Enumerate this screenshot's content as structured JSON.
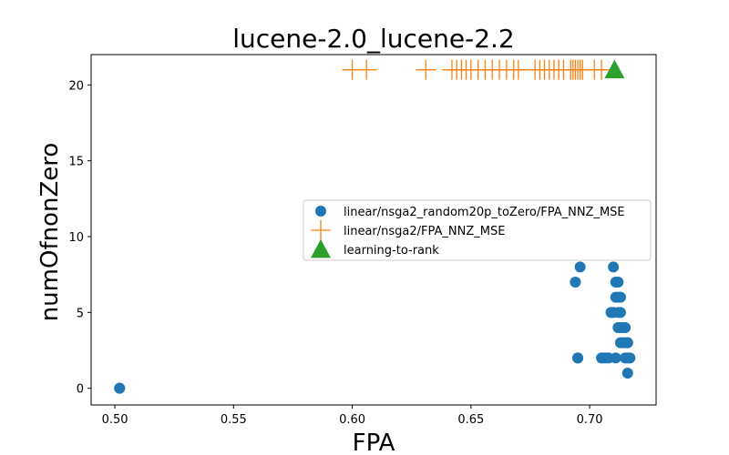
{
  "chart_data": {
    "type": "scatter",
    "title": "lucene-2.0_lucene-2.2",
    "xlabel": "FPA",
    "ylabel": "numOfnonZero",
    "xlim": [
      0.49,
      0.728
    ],
    "ylim": [
      -1.1,
      22.0
    ],
    "xticks": [
      0.5,
      0.55,
      0.6,
      0.65,
      0.7
    ],
    "xtick_labels": [
      "0.50",
      "0.55",
      "0.60",
      "0.65",
      "0.70"
    ],
    "yticks": [
      0,
      5,
      10,
      15,
      20
    ],
    "ytick_labels": [
      "0",
      "5",
      "10",
      "15",
      "20"
    ],
    "grid": false,
    "legend_position": "center-right",
    "series": [
      {
        "name": "linear/nsga2_random20p_toZero/FPA_NNZ_MSE",
        "marker": "circle",
        "color": "#1f77b4",
        "points": [
          [
            0.502,
            0
          ],
          [
            0.502,
            0
          ],
          [
            0.694,
            7
          ],
          [
            0.696,
            8
          ],
          [
            0.695,
            2
          ],
          [
            0.695,
            2
          ],
          [
            0.705,
            2
          ],
          [
            0.706,
            2
          ],
          [
            0.707,
            2
          ],
          [
            0.708,
            2
          ],
          [
            0.709,
            5
          ],
          [
            0.71,
            5
          ],
          [
            0.71,
            8
          ],
          [
            0.711,
            7
          ],
          [
            0.712,
            7
          ],
          [
            0.711,
            6
          ],
          [
            0.712,
            6
          ],
          [
            0.713,
            6
          ],
          [
            0.712,
            5
          ],
          [
            0.713,
            5
          ],
          [
            0.712,
            4
          ],
          [
            0.713,
            4
          ],
          [
            0.714,
            4
          ],
          [
            0.715,
            4
          ],
          [
            0.713,
            3
          ],
          [
            0.714,
            3
          ],
          [
            0.715,
            3
          ],
          [
            0.716,
            3
          ],
          [
            0.716,
            3
          ],
          [
            0.711,
            2
          ],
          [
            0.715,
            2
          ],
          [
            0.716,
            2
          ],
          [
            0.717,
            2
          ],
          [
            0.716,
            1
          ]
        ]
      },
      {
        "name": "linear/nsga2/FPA_NNZ_MSE",
        "marker": "plus",
        "color": "#ff7f0e",
        "points": [
          [
            0.6,
            21
          ],
          [
            0.606,
            21
          ],
          [
            0.631,
            21
          ],
          [
            0.642,
            21
          ],
          [
            0.644,
            21
          ],
          [
            0.646,
            21
          ],
          [
            0.648,
            21
          ],
          [
            0.65,
            21
          ],
          [
            0.653,
            21
          ],
          [
            0.656,
            21
          ],
          [
            0.659,
            21
          ],
          [
            0.662,
            21
          ],
          [
            0.665,
            21
          ],
          [
            0.668,
            21
          ],
          [
            0.67,
            21
          ],
          [
            0.677,
            21
          ],
          [
            0.679,
            21
          ],
          [
            0.681,
            21
          ],
          [
            0.683,
            21
          ],
          [
            0.685,
            21
          ],
          [
            0.687,
            21
          ],
          [
            0.689,
            21
          ],
          [
            0.692,
            21
          ],
          [
            0.693,
            21
          ],
          [
            0.694,
            21
          ],
          [
            0.695,
            21
          ],
          [
            0.696,
            21
          ],
          [
            0.697,
            21
          ],
          [
            0.702,
            21
          ],
          [
            0.705,
            21
          ]
        ]
      },
      {
        "name": "learning-to-rank",
        "marker": "triangle",
        "color": "#2ca02c",
        "points": [
          [
            0.7105,
            21
          ]
        ]
      }
    ]
  }
}
